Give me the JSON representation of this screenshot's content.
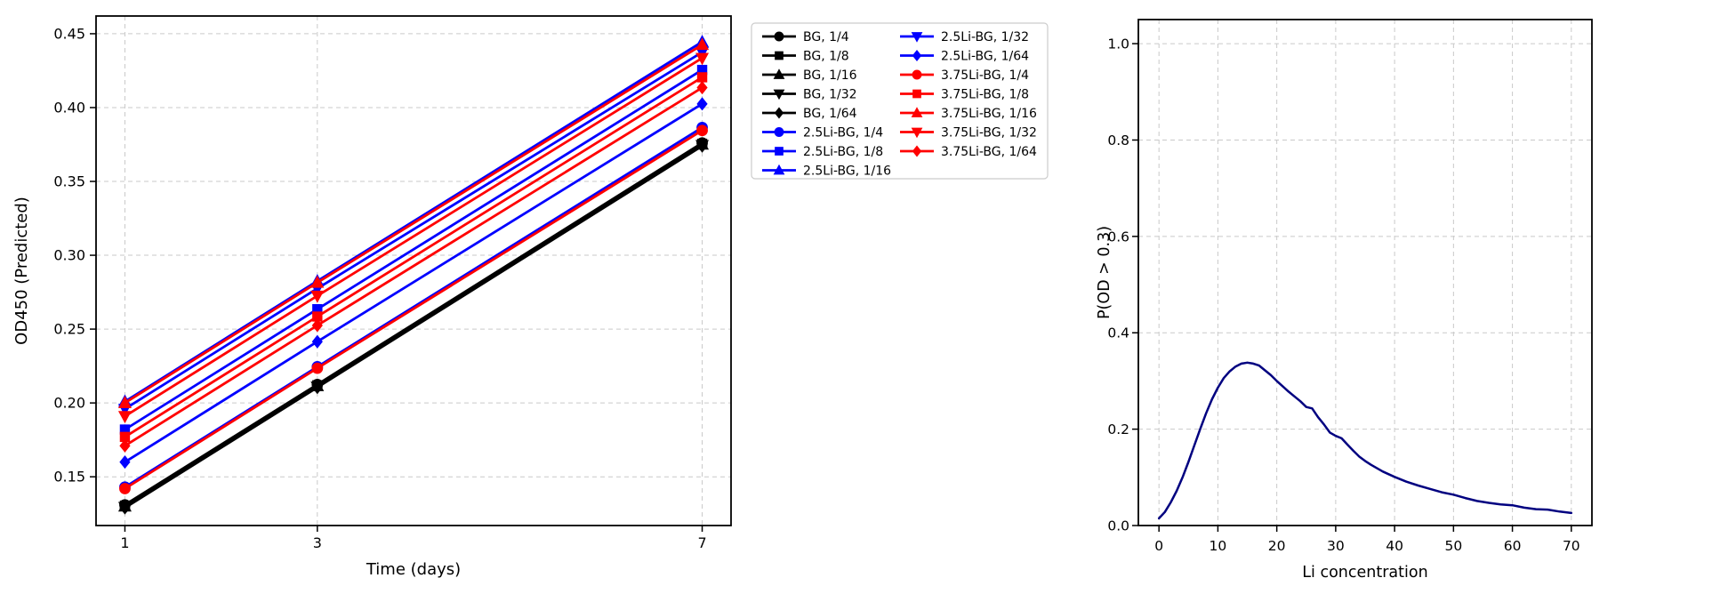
{
  "figure": {
    "background": "#ffffff"
  },
  "chart_data": [
    {
      "type": "line",
      "title": "",
      "xlabel": "Time (days)",
      "ylabel": "OD450 (Predicted)",
      "x": [
        1,
        3,
        7
      ],
      "x_ticks": [
        1,
        3,
        7
      ],
      "x_tick_labels": [
        "1",
        "3",
        "7"
      ],
      "y_ticks": [
        0.15,
        0.2,
        0.25,
        0.3,
        0.35,
        0.4,
        0.45
      ],
      "y_tick_labels": [
        "0.15",
        "0.20",
        "0.25",
        "0.30",
        "0.35",
        "0.40",
        "0.45"
      ],
      "xlim": [
        0.7,
        7.3
      ],
      "ylim": [
        0.117,
        0.462
      ],
      "grid": true,
      "grid_style": "dashed",
      "legend": {
        "columns": 2,
        "location": "outside-top-right",
        "rows_first_column": 8
      },
      "group_colors": {
        "BG": "#000000",
        "2.5Li-BG": "#0000ff",
        "3.75Li-BG": "#ff0000"
      },
      "series": [
        {
          "name": "BG, 1/4",
          "color": "#000000",
          "marker": "circle",
          "values": [
            0.131,
            0.2125,
            0.376
          ]
        },
        {
          "name": "BG, 1/8",
          "color": "#000000",
          "marker": "square",
          "values": [
            0.1305,
            0.212,
            0.3755
          ]
        },
        {
          "name": "BG, 1/16",
          "color": "#000000",
          "marker": "triangle-up",
          "values": [
            0.13,
            0.2115,
            0.375
          ]
        },
        {
          "name": "BG, 1/32",
          "color": "#000000",
          "marker": "triangle-down",
          "values": [
            0.1295,
            0.211,
            0.3745
          ]
        },
        {
          "name": "BG, 1/64",
          "color": "#000000",
          "marker": "diamond",
          "values": [
            0.129,
            0.2105,
            0.374
          ]
        },
        {
          "name": "2.5Li-BG, 1/4",
          "color": "#0000ff",
          "marker": "circle",
          "values": [
            0.143,
            0.2245,
            0.3865
          ]
        },
        {
          "name": "2.5Li-BG, 1/8",
          "color": "#0000ff",
          "marker": "square",
          "values": [
            0.182,
            0.2635,
            0.4255
          ]
        },
        {
          "name": "2.5Li-BG, 1/16",
          "color": "#0000ff",
          "marker": "triangle-up",
          "values": [
            0.201,
            0.2825,
            0.4445
          ]
        },
        {
          "name": "2.5Li-BG, 1/32",
          "color": "#0000ff",
          "marker": "triangle-down",
          "values": [
            0.196,
            0.2775,
            0.4375
          ]
        },
        {
          "name": "2.5Li-BG, 1/64",
          "color": "#0000ff",
          "marker": "diamond",
          "values": [
            0.16,
            0.2415,
            0.4025
          ]
        },
        {
          "name": "3.75Li-BG, 1/4",
          "color": "#ff0000",
          "marker": "circle",
          "values": [
            0.142,
            0.2235,
            0.3845
          ]
        },
        {
          "name": "3.75Li-BG, 1/8",
          "color": "#ff0000",
          "marker": "square",
          "values": [
            0.177,
            0.2585,
            0.4205
          ]
        },
        {
          "name": "3.75Li-BG, 1/16",
          "color": "#ff0000",
          "marker": "triangle-up",
          "values": [
            0.2,
            0.2815,
            0.4425
          ]
        },
        {
          "name": "3.75Li-BG, 1/32",
          "color": "#ff0000",
          "marker": "triangle-down",
          "values": [
            0.191,
            0.2725,
            0.4335
          ]
        },
        {
          "name": "3.75Li-BG, 1/64",
          "color": "#ff0000",
          "marker": "diamond",
          "values": [
            0.171,
            0.2525,
            0.4135
          ]
        }
      ]
    },
    {
      "type": "line",
      "title": "",
      "xlabel": "Li concentration",
      "ylabel": "P(OD > 0.3)",
      "x_ticks": [
        0,
        10,
        20,
        30,
        40,
        50,
        60,
        70
      ],
      "x_tick_labels": [
        "0",
        "10",
        "20",
        "30",
        "40",
        "50",
        "60",
        "70"
      ],
      "y_ticks": [
        0,
        0.2,
        0.4,
        0.6,
        0.8,
        1.0
      ],
      "y_tick_labels": [
        "0.0",
        "0.2",
        "0.4",
        "0.6",
        "0.8",
        "1.0"
      ],
      "xlim": [
        -3.5,
        73.5
      ],
      "ylim": [
        0,
        1.05
      ],
      "grid": true,
      "grid_style": "dashed",
      "series": [
        {
          "name": "P(OD > 0.3)",
          "color": "#000080",
          "x": [
            0,
            1,
            2,
            3,
            4,
            5,
            6,
            7,
            8,
            9,
            10,
            11,
            12,
            13,
            14,
            15,
            16,
            17,
            18,
            19,
            20,
            21,
            22,
            23,
            24,
            25,
            26,
            27,
            28,
            29,
            30,
            31,
            32,
            33,
            34,
            35,
            36,
            38,
            40,
            42,
            44,
            46,
            48,
            50,
            52,
            54,
            56,
            58,
            60,
            62,
            64,
            66,
            68,
            70
          ],
          "y": [
            0.015,
            0.028,
            0.048,
            0.072,
            0.1,
            0.132,
            0.166,
            0.2,
            0.233,
            0.262,
            0.286,
            0.306,
            0.32,
            0.33,
            0.336,
            0.338,
            0.336,
            0.332,
            0.322,
            0.312,
            0.3,
            0.289,
            0.278,
            0.268,
            0.258,
            0.246,
            0.243,
            0.225,
            0.21,
            0.193,
            0.186,
            0.181,
            0.168,
            0.155,
            0.143,
            0.134,
            0.126,
            0.112,
            0.101,
            0.091,
            0.083,
            0.076,
            0.069,
            0.064,
            0.057,
            0.051,
            0.047,
            0.044,
            0.042,
            0.037,
            0.034,
            0.033,
            0.029,
            0.026
          ]
        }
      ]
    }
  ]
}
